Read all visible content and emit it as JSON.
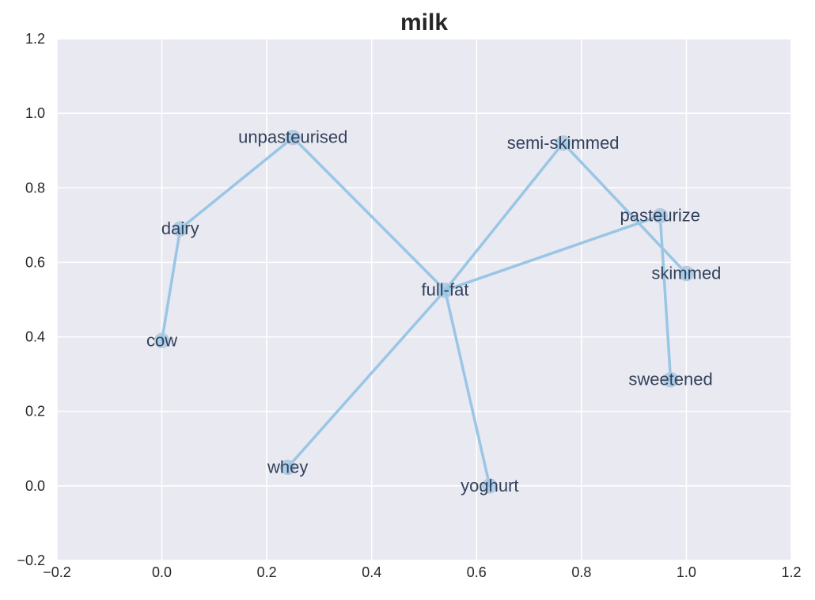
{
  "chart_data": {
    "type": "scatter",
    "title": "milk",
    "xlabel": "",
    "ylabel": "",
    "xlim": [
      -0.2,
      1.2
    ],
    "ylim": [
      -0.2,
      1.2
    ],
    "xticks": [
      -0.2,
      0.0,
      0.2,
      0.4,
      0.6,
      0.8,
      1.0,
      1.2
    ],
    "yticks": [
      -0.2,
      0.0,
      0.2,
      0.4,
      0.6,
      0.8,
      1.0,
      1.2
    ],
    "xtick_labels": [
      "−0.2",
      "0.0",
      "0.2",
      "0.4",
      "0.6",
      "0.8",
      "1.0",
      "1.2"
    ],
    "ytick_labels": [
      "−0.2",
      "0.0",
      "0.2",
      "0.4",
      "0.6",
      "0.8",
      "1.0",
      "1.2"
    ],
    "grid": true,
    "points": [
      {
        "label": "cow",
        "x": 0.0,
        "y": 0.39
      },
      {
        "label": "dairy",
        "x": 0.035,
        "y": 0.69
      },
      {
        "label": "unpasteurised",
        "x": 0.25,
        "y": 0.935
      },
      {
        "label": "full-fat",
        "x": 0.54,
        "y": 0.525
      },
      {
        "label": "semi-skimmed",
        "x": 0.765,
        "y": 0.92
      },
      {
        "label": "skimmed",
        "x": 1.0,
        "y": 0.57
      },
      {
        "label": "pasteurize",
        "x": 0.95,
        "y": 0.725
      },
      {
        "label": "sweetened",
        "x": 0.97,
        "y": 0.285
      },
      {
        "label": "whey",
        "x": 0.24,
        "y": 0.05
      },
      {
        "label": "yoghurt",
        "x": 0.625,
        "y": 0.0
      }
    ],
    "edges": [
      [
        "cow",
        "dairy"
      ],
      [
        "dairy",
        "unpasteurised"
      ],
      [
        "unpasteurised",
        "full-fat"
      ],
      [
        "full-fat",
        "semi-skimmed"
      ],
      [
        "semi-skimmed",
        "skimmed"
      ],
      [
        "full-fat",
        "pasteurize"
      ],
      [
        "pasteurize",
        "sweetened"
      ],
      [
        "full-fat",
        "whey"
      ],
      [
        "full-fat",
        "yoghurt"
      ]
    ],
    "colors": {
      "plot_background": "#e9e9f1",
      "grid": "#ffffff",
      "line": "#9ac6e6",
      "marker_fill": "#9ac6e6",
      "marker_stroke": "#b7c9dc",
      "point_label": "#33425b",
      "text": "#262626"
    }
  }
}
